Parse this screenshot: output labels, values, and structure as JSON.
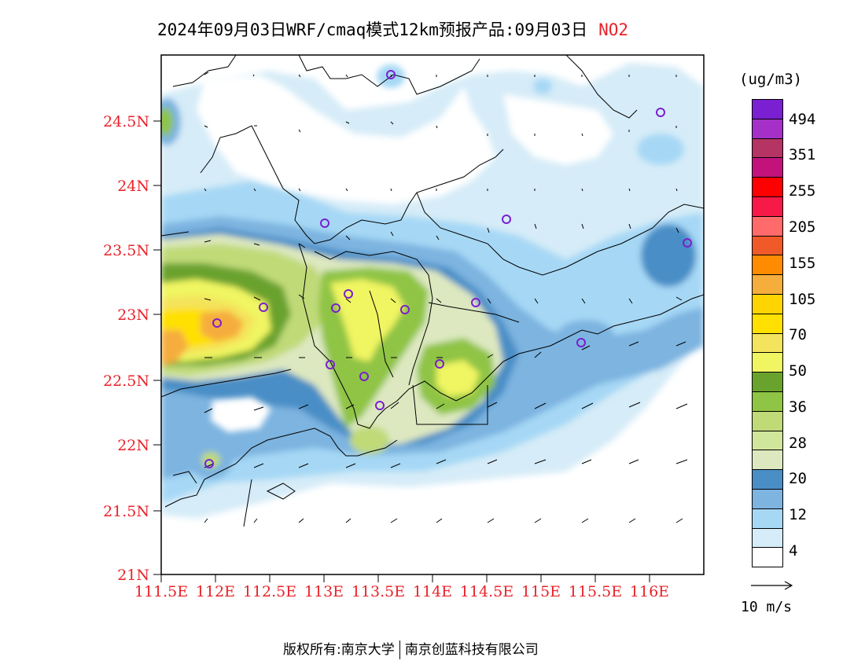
{
  "title": {
    "main": "2024年09月03日WRF/cmaq模式12km预报产品:09月03日",
    "pollutant": "NO2"
  },
  "map": {
    "lat_labels": [
      "24.5N",
      "24N",
      "23.5N",
      "23N",
      "22.5N",
      "22N",
      "21.5N",
      "21N"
    ],
    "lon_labels": [
      "111.5E",
      "112E",
      "112.5E",
      "113E",
      "113.5E",
      "114E",
      "114.5E",
      "115E",
      "115.5E",
      "116E"
    ],
    "lat_range": [
      21.0,
      25.0
    ],
    "lon_range": [
      111.5,
      116.5
    ],
    "axis_label_color": "#e8232a",
    "station_marker_color": "#7a1fd1"
  },
  "legend": {
    "unit": "(ug/m3)",
    "labels": [
      "494",
      "351",
      "255",
      "205",
      "155",
      "105",
      "70",
      "50",
      "36",
      "28",
      "20",
      "12",
      "4"
    ],
    "colors": [
      "#7a1fd1",
      "#a530c8",
      "#b43463",
      "#c4127d",
      "#ff0000",
      "#f71a48",
      "#ff6a6a",
      "#f05a28",
      "#ff8c00",
      "#f5ad3c",
      "#ffd400",
      "#ffe000",
      "#f4e35c",
      "#f0f562",
      "#6aa22e",
      "#8fc444",
      "#c0da78",
      "#d0e69a",
      "#dde8c0",
      "#4a8ec6",
      "#7db4e0",
      "#a6d8f5",
      "#d6ecf8",
      "#ffffff"
    ]
  },
  "wind_reference": {
    "label": "10 m/s"
  },
  "footer": {
    "left": "版权所有:南京大学",
    "right": "南京创蓝科技有限公司"
  }
}
